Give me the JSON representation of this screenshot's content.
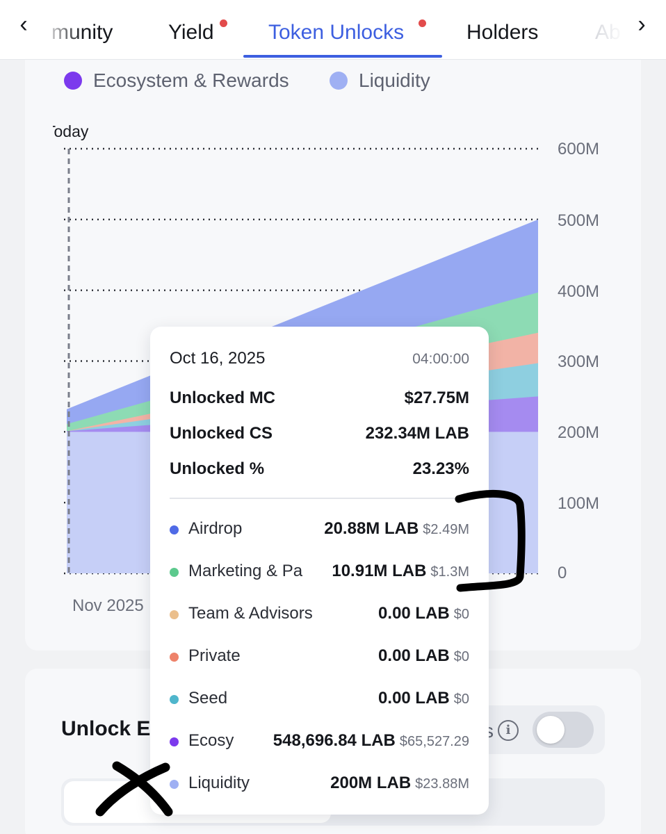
{
  "tabs": {
    "prev_arrow": "‹",
    "next_arrow": "›",
    "items": [
      {
        "label": "munity",
        "badge": false
      },
      {
        "label": "Yield",
        "badge": true
      },
      {
        "label": "Token Unlocks",
        "badge": true,
        "active": true
      },
      {
        "label": "Holders",
        "badge": false
      },
      {
        "label": "Ab",
        "badge": false
      }
    ]
  },
  "legend": [
    {
      "label": "Ecosystem & Rewards",
      "color": "#7c3aed"
    },
    {
      "label": "Liquidity",
      "color": "#9fb0f3"
    }
  ],
  "chart_data": {
    "type": "area",
    "today_label": "Today",
    "x_tick": "Nov 2025",
    "y_ticks": [
      "600M",
      "500M",
      "400M",
      "300M",
      "200M",
      "100M",
      "0"
    ],
    "ylim": [
      0,
      600
    ],
    "colors": {
      "liquidity": "#c6cff7",
      "ecosystem": "#a58bf0",
      "seed": "#8ecfe0",
      "private": "#f2b3a6",
      "marketing": "#8ddbb4",
      "airdrop": "#96a8f2"
    },
    "series_end_values_M": {
      "liquidity": 200,
      "ecosystem": 250,
      "seed": 297,
      "private": 340,
      "marketing": 397,
      "airdrop": 500
    }
  },
  "tooltip": {
    "date": "Oct 16, 2025",
    "time": "04:00:00",
    "stats": [
      {
        "label": "Unlocked MC",
        "value": "$27.75M"
      },
      {
        "label": "Unlocked CS",
        "value": "232.34M LAB"
      },
      {
        "label": "Unlocked %",
        "value": "23.23%"
      }
    ],
    "items": [
      {
        "name": "Airdrop",
        "amount": "20.88M LAB",
        "usd": "$2.49M",
        "color": "#4f6ae6"
      },
      {
        "name": "Marketing & Pa",
        "amount": "10.91M LAB",
        "usd": "$1.3M",
        "color": "#5cc98d"
      },
      {
        "name": "Team & Advisors",
        "amount": "0.00 LAB",
        "usd": "$0",
        "color": "#ebbf8c"
      },
      {
        "name": "Private",
        "amount": "0.00 LAB",
        "usd": "$0",
        "color": "#ee826a"
      },
      {
        "name": "Seed",
        "amount": "0.00 LAB",
        "usd": "$0",
        "color": "#4fb6cc"
      },
      {
        "name": "Ecosy",
        "amount": "548,696.84 LAB",
        "usd": "$65,527.29",
        "color": "#7c3aed"
      },
      {
        "name": "Liquidity",
        "amount": "200M LAB",
        "usd": "$23.88M",
        "color": "#9fb0f3"
      }
    ]
  },
  "events": {
    "title": "Unlock E",
    "toggle_tail": "s",
    "info_glyph": "i"
  }
}
